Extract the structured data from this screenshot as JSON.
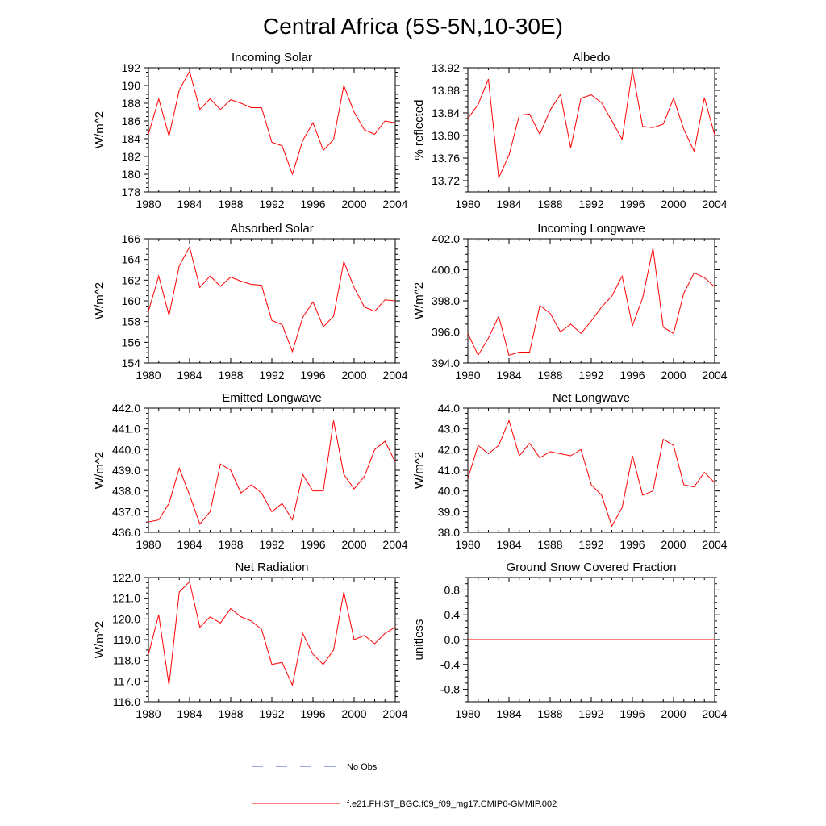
{
  "title": "Central Africa (5S-5N,10-30E)",
  "chart_data": [
    {
      "type": "line",
      "title": "Incoming Solar",
      "ylabel": "W/m^2",
      "xlim": [
        1980,
        2004
      ],
      "ylim": [
        178,
        192
      ],
      "xticks": [
        1980,
        1984,
        1988,
        1992,
        1996,
        2000,
        2004
      ],
      "yticks": [
        178,
        180,
        182,
        184,
        186,
        188,
        190,
        192
      ],
      "ytick_labels": [
        "178",
        "180",
        "182",
        "184",
        "186",
        "188",
        "190",
        "192"
      ],
      "x": [
        1980,
        1981,
        1982,
        1983,
        1984,
        1985,
        1986,
        1987,
        1988,
        1989,
        1990,
        1991,
        1992,
        1993,
        1994,
        1995,
        1996,
        1997,
        1998,
        1999,
        2000,
        2001,
        2002,
        2003,
        2004
      ],
      "values": [
        184.5,
        188.5,
        184.3,
        189.5,
        191.6,
        187.3,
        188.5,
        187.3,
        188.4,
        188.0,
        187.5,
        187.5,
        183.6,
        183.2,
        180.0,
        183.8,
        185.8,
        182.7,
        183.9,
        190.0,
        187.0,
        185.0,
        184.5,
        186.0,
        185.8
      ]
    },
    {
      "type": "line",
      "title": "Albedo",
      "ylabel": "% reflected",
      "xlim": [
        1980,
        2004
      ],
      "ylim": [
        13.7,
        13.92
      ],
      "xticks": [
        1980,
        1984,
        1988,
        1992,
        1996,
        2000,
        2004
      ],
      "yticks": [
        13.72,
        13.76,
        13.8,
        13.84,
        13.88,
        13.92
      ],
      "ytick_labels": [
        "13.72",
        "13.76",
        "13.80",
        "13.84",
        "13.88",
        "13.92"
      ],
      "x": [
        1980,
        1981,
        1982,
        1983,
        1984,
        1985,
        1986,
        1987,
        1988,
        1989,
        1990,
        1991,
        1992,
        1993,
        1994,
        1995,
        1996,
        1997,
        1998,
        1999,
        2000,
        2001,
        2002,
        2003,
        2004
      ],
      "values": [
        13.83,
        13.855,
        13.9,
        13.725,
        13.765,
        13.836,
        13.838,
        13.802,
        13.845,
        13.873,
        13.778,
        13.866,
        13.872,
        13.858,
        13.826,
        13.793,
        13.916,
        13.816,
        13.814,
        13.82,
        13.866,
        13.811,
        13.772,
        13.867,
        13.801
      ]
    },
    {
      "type": "line",
      "title": "Absorbed Solar",
      "ylabel": "W/m^2",
      "xlim": [
        1980,
        2004
      ],
      "ylim": [
        154,
        166
      ],
      "xticks": [
        1980,
        1984,
        1988,
        1992,
        1996,
        2000,
        2004
      ],
      "yticks": [
        154,
        156,
        158,
        160,
        162,
        164,
        166
      ],
      "ytick_labels": [
        "154",
        "156",
        "158",
        "160",
        "162",
        "164",
        "166"
      ],
      "x": [
        1980,
        1981,
        1982,
        1983,
        1984,
        1985,
        1986,
        1987,
        1988,
        1989,
        1990,
        1991,
        1992,
        1993,
        1994,
        1995,
        1996,
        1997,
        1998,
        1999,
        2000,
        2001,
        2002,
        2003,
        2004
      ],
      "values": [
        159.0,
        162.4,
        158.6,
        163.4,
        165.2,
        161.3,
        162.4,
        161.4,
        162.3,
        161.9,
        161.6,
        161.5,
        158.1,
        157.7,
        155.1,
        158.4,
        159.9,
        157.5,
        158.5,
        163.8,
        161.3,
        159.4,
        159.0,
        160.1,
        160.0
      ]
    },
    {
      "type": "line",
      "title": "Incoming Longwave",
      "ylabel": "W/m^2",
      "xlim": [
        1980,
        2004
      ],
      "ylim": [
        394.0,
        402.0
      ],
      "xticks": [
        1980,
        1984,
        1988,
        1992,
        1996,
        2000,
        2004
      ],
      "yticks": [
        394.0,
        396.0,
        398.0,
        400.0,
        402.0
      ],
      "ytick_labels": [
        "394.0",
        "396.0",
        "398.0",
        "400.0",
        "402.0"
      ],
      "x": [
        1980,
        1981,
        1982,
        1983,
        1984,
        1985,
        1986,
        1987,
        1988,
        1989,
        1990,
        1991,
        1992,
        1993,
        1994,
        1995,
        1996,
        1997,
        1998,
        1999,
        2000,
        2001,
        2002,
        2003,
        2004
      ],
      "values": [
        395.9,
        394.5,
        395.6,
        397.0,
        394.5,
        394.7,
        394.7,
        397.7,
        397.2,
        396.0,
        396.5,
        395.9,
        396.7,
        397.6,
        398.3,
        399.6,
        396.4,
        398.2,
        401.4,
        396.3,
        395.9,
        398.5,
        399.8,
        399.5,
        398.9
      ]
    },
    {
      "type": "line",
      "title": "Emitted Longwave",
      "ylabel": "W/m^2",
      "xlim": [
        1980,
        2004
      ],
      "ylim": [
        436.0,
        442.0
      ],
      "xticks": [
        1980,
        1984,
        1988,
        1992,
        1996,
        2000,
        2004
      ],
      "yticks": [
        436.0,
        437.0,
        438.0,
        439.0,
        440.0,
        441.0,
        442.0
      ],
      "ytick_labels": [
        "436.0",
        "437.0",
        "438.0",
        "439.0",
        "440.0",
        "441.0",
        "442.0"
      ],
      "x": [
        1980,
        1981,
        1982,
        1983,
        1984,
        1985,
        1986,
        1987,
        1988,
        1989,
        1990,
        1991,
        1992,
        1993,
        1994,
        1995,
        1996,
        1997,
        1998,
        1999,
        2000,
        2001,
        2002,
        2003,
        2004
      ],
      "values": [
        436.5,
        436.6,
        437.4,
        439.1,
        437.8,
        436.4,
        437.0,
        439.3,
        439.0,
        437.9,
        438.3,
        437.9,
        437.0,
        437.4,
        436.6,
        438.8,
        438.0,
        438.0,
        441.4,
        438.8,
        438.1,
        438.7,
        440.0,
        440.4,
        439.4
      ]
    },
    {
      "type": "line",
      "title": "Net Longwave",
      "ylabel": "W/m^2",
      "xlim": [
        1980,
        2004
      ],
      "ylim": [
        38.0,
        44.0
      ],
      "xticks": [
        1980,
        1984,
        1988,
        1992,
        1996,
        2000,
        2004
      ],
      "yticks": [
        38.0,
        39.0,
        40.0,
        41.0,
        42.0,
        43.0,
        44.0
      ],
      "ytick_labels": [
        "38.0",
        "39.0",
        "40.0",
        "41.0",
        "42.0",
        "43.0",
        "44.0"
      ],
      "x": [
        1980,
        1981,
        1982,
        1983,
        1984,
        1985,
        1986,
        1987,
        1988,
        1989,
        1990,
        1991,
        1992,
        1993,
        1994,
        1995,
        1996,
        1997,
        1998,
        1999,
        2000,
        2001,
        2002,
        2003,
        2004
      ],
      "values": [
        40.6,
        42.2,
        41.8,
        42.2,
        43.4,
        41.7,
        42.3,
        41.6,
        41.9,
        41.8,
        41.7,
        42.0,
        40.3,
        39.8,
        38.3,
        39.2,
        41.7,
        39.8,
        40.0,
        42.5,
        42.2,
        40.3,
        40.2,
        40.9,
        40.4
      ]
    },
    {
      "type": "line",
      "title": "Net Radiation",
      "ylabel": "W/m^2",
      "xlim": [
        1980,
        2004
      ],
      "ylim": [
        116.0,
        122.0
      ],
      "xticks": [
        1980,
        1984,
        1988,
        1992,
        1996,
        2000,
        2004
      ],
      "yticks": [
        116.0,
        117.0,
        118.0,
        119.0,
        120.0,
        121.0,
        122.0
      ],
      "ytick_labels": [
        "116.0",
        "117.0",
        "118.0",
        "119.0",
        "120.0",
        "121.0",
        "122.0"
      ],
      "x": [
        1980,
        1981,
        1982,
        1983,
        1984,
        1985,
        1986,
        1987,
        1988,
        1989,
        1990,
        1991,
        1992,
        1993,
        1994,
        1995,
        1996,
        1997,
        1998,
        1999,
        2000,
        2001,
        2002,
        2003,
        2004
      ],
      "values": [
        118.3,
        120.2,
        116.8,
        121.3,
        121.8,
        119.6,
        120.1,
        119.8,
        120.5,
        120.1,
        119.9,
        119.5,
        117.8,
        117.9,
        116.8,
        119.3,
        118.3,
        117.8,
        118.5,
        121.3,
        119.0,
        119.2,
        118.8,
        119.3,
        119.6
      ]
    },
    {
      "type": "line",
      "title": "Ground Snow Covered Fraction",
      "ylabel": "unitless",
      "xlim": [
        1980,
        2004
      ],
      "ylim": [
        -1.0,
        1.0
      ],
      "xticks": [
        1980,
        1984,
        1988,
        1992,
        1996,
        2000,
        2004
      ],
      "yticks": [
        -0.8,
        -0.4,
        0.0,
        0.4,
        0.8
      ],
      "ytick_labels": [
        "-0.8",
        "-0.4",
        "0.0",
        "0.4",
        "0.8"
      ],
      "x": [
        1980,
        2004
      ],
      "values": [
        0.0,
        0.0
      ]
    }
  ],
  "legend": [
    {
      "label": "No Obs",
      "color": "#3b4cc0",
      "style": "dashed"
    },
    {
      "label": "f.e21.FHIST_BGC.f09_f09_mg17.CMIP6-GMMIP.002",
      "color": "#ff0000",
      "style": "solid"
    }
  ]
}
